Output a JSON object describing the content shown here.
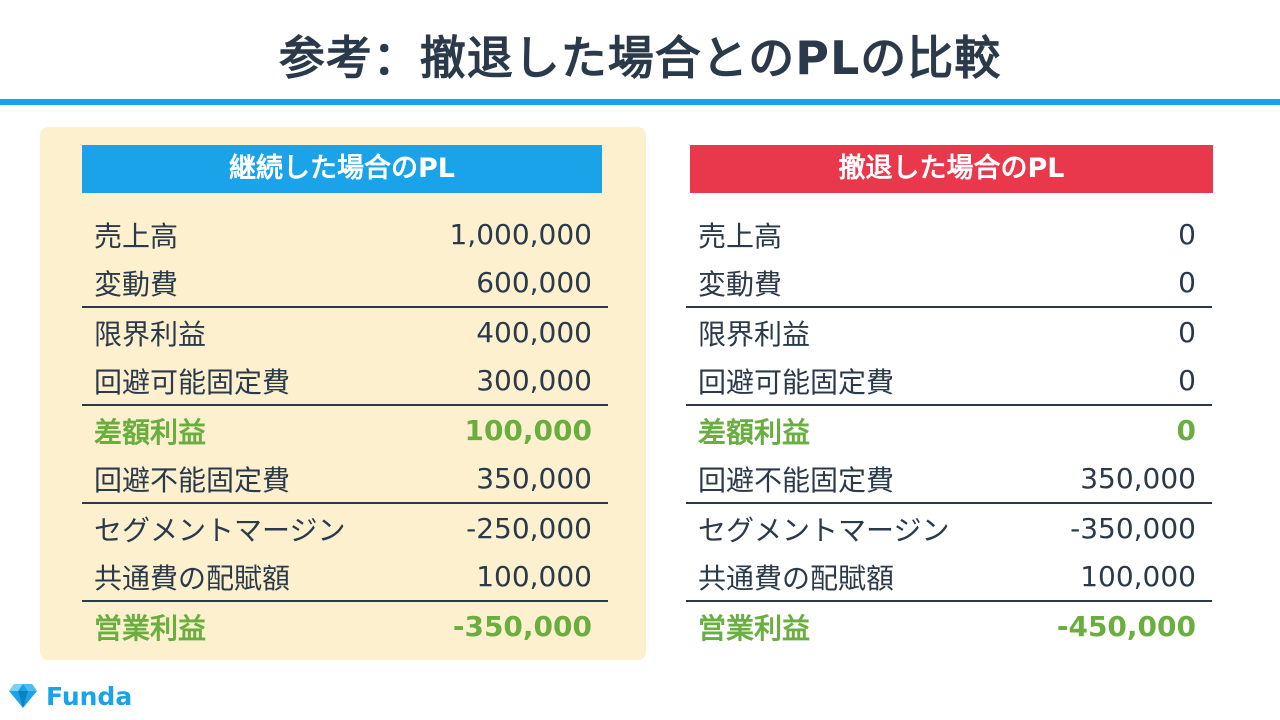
{
  "title": "参考：撤退した場合とのPLの比較",
  "left": {
    "header": "継続した場合のPL",
    "rows": [
      {
        "label": "売上高",
        "value": "1,000,000"
      },
      {
        "label": "変動費",
        "value": "600,000"
      },
      {
        "label": "限界利益",
        "value": "400,000"
      },
      {
        "label": "回避可能固定費",
        "value": "300,000"
      },
      {
        "label": "差額利益",
        "value": "100,000"
      },
      {
        "label": "回避不能固定費",
        "value": "350,000"
      },
      {
        "label": "セグメントマージン",
        "value": "-250,000"
      },
      {
        "label": "共通費の配賦額",
        "value": "100,000"
      },
      {
        "label": "営業利益",
        "value": "-350,000"
      }
    ]
  },
  "right": {
    "header": "撤退した場合のPL",
    "rows": [
      {
        "label": "売上高",
        "value": "0"
      },
      {
        "label": "変動費",
        "value": "0"
      },
      {
        "label": "限界利益",
        "value": "0"
      },
      {
        "label": "回避可能固定費",
        "value": "0"
      },
      {
        "label": "差額利益",
        "value": "0"
      },
      {
        "label": "回避不能固定費",
        "value": "350,000"
      },
      {
        "label": "セグメントマージン",
        "value": "-350,000"
      },
      {
        "label": "共通費の配賦額",
        "value": "100,000"
      },
      {
        "label": "営業利益",
        "value": "-450,000"
      }
    ]
  },
  "logo": {
    "text": "Funda",
    "icon": "diamond-logo-icon"
  },
  "colors": {
    "accent_blue": "#1aa3e8",
    "accent_red": "#e9374b",
    "highlight_green": "#6aae3f",
    "panel_background": "#fdf0cf",
    "text": "#2b3a4a"
  }
}
